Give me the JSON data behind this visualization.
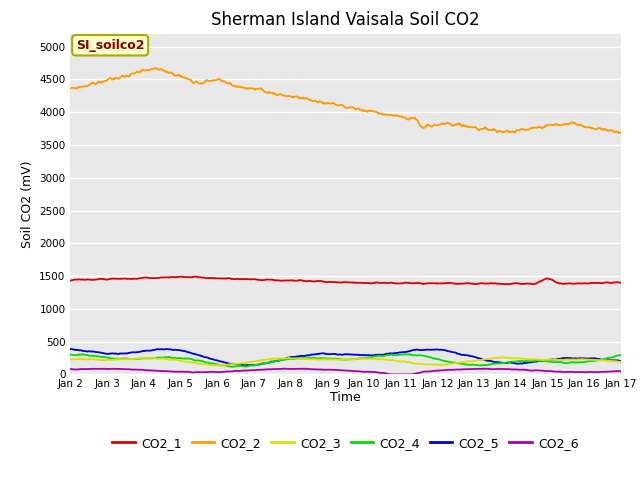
{
  "title": "Sherman Island Vaisala Soil CO2",
  "ylabel": "Soil CO2 (mV)",
  "xlabel": "Time",
  "annotation_text": "SI_soilco2",
  "xlim": [
    0,
    15
  ],
  "ylim": [
    0,
    5200
  ],
  "yticks": [
    0,
    500,
    1000,
    1500,
    2000,
    2500,
    3000,
    3500,
    4000,
    4500,
    5000
  ],
  "xtick_labels": [
    "Jan 2",
    "Jan 3",
    "Jan 4",
    "Jan 5",
    "Jan 6",
    "Jan 7",
    "Jan 8",
    "Jan 9",
    "Jan 10",
    "Jan 11",
    "Jan 12",
    "Jan 13",
    "Jan 14",
    "Jan 15",
    "Jan 16",
    "Jan 17"
  ],
  "bg_color": "#e8e8e8",
  "fig_color": "#ffffff",
  "colors": {
    "CO2_1": "#dd0000",
    "CO2_2": "#ff9900",
    "CO2_3": "#dddd00",
    "CO2_4": "#00dd00",
    "CO2_5": "#0000dd",
    "CO2_6": "#aa00aa"
  },
  "legend_labels": [
    "CO2_1",
    "CO2_2",
    "CO2_3",
    "CO2_4",
    "CO2_5",
    "CO2_6"
  ]
}
